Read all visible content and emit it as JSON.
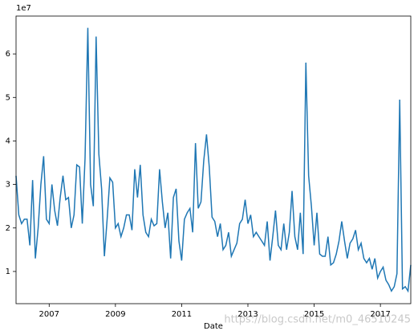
{
  "chart_data": {
    "type": "line",
    "x_label": "Date",
    "offset_label": "1e7",
    "watermark": "https://blog.csdn.net/m0_46510245",
    "x": [
      2006,
      2006.083,
      2006.167,
      2006.25,
      2006.333,
      2006.417,
      2006.5,
      2006.583,
      2006.667,
      2006.75,
      2006.833,
      2006.917,
      2007,
      2007.083,
      2007.167,
      2007.25,
      2007.333,
      2007.417,
      2007.5,
      2007.583,
      2007.667,
      2007.75,
      2007.833,
      2007.917,
      2008,
      2008.083,
      2008.167,
      2008.25,
      2008.333,
      2008.417,
      2008.5,
      2008.583,
      2008.667,
      2008.75,
      2008.833,
      2008.917,
      2009,
      2009.083,
      2009.167,
      2009.25,
      2009.333,
      2009.417,
      2009.5,
      2009.583,
      2009.667,
      2009.75,
      2009.833,
      2009.917,
      2010,
      2010.083,
      2010.167,
      2010.25,
      2010.333,
      2010.417,
      2010.5,
      2010.583,
      2010.667,
      2010.75,
      2010.833,
      2010.917,
      2011,
      2011.083,
      2011.167,
      2011.25,
      2011.333,
      2011.417,
      2011.5,
      2011.583,
      2011.667,
      2011.75,
      2011.833,
      2011.917,
      2012,
      2012.083,
      2012.167,
      2012.25,
      2012.333,
      2012.417,
      2012.5,
      2012.583,
      2012.667,
      2012.75,
      2012.833,
      2012.917,
      2013,
      2013.083,
      2013.167,
      2013.25,
      2013.333,
      2013.417,
      2013.5,
      2013.583,
      2013.667,
      2013.75,
      2013.833,
      2013.917,
      2014,
      2014.083,
      2014.167,
      2014.25,
      2014.333,
      2014.417,
      2014.5,
      2014.583,
      2014.667,
      2014.75,
      2014.833,
      2014.917,
      2015,
      2015.083,
      2015.167,
      2015.25,
      2015.333,
      2015.417,
      2015.5,
      2015.583,
      2015.667,
      2015.75,
      2015.833,
      2015.917,
      2016,
      2016.083,
      2016.167,
      2016.25,
      2016.333,
      2016.417,
      2016.5,
      2016.583,
      2016.667,
      2016.75,
      2016.833,
      2016.917,
      2017,
      2017.083,
      2017.167,
      2017.25,
      2017.333,
      2017.417,
      2017.5,
      2017.583,
      2017.667,
      2017.75,
      2017.833,
      2017.917
    ],
    "series": [
      {
        "color": "#1f77b4",
        "values": [
          3.2,
          2.3,
          2.1,
          2.2,
          2.2,
          1.6,
          3.1,
          1.3,
          2.0,
          3.0,
          3.65,
          2.2,
          2.1,
          3.0,
          2.4,
          2.05,
          2.7,
          3.2,
          2.65,
          2.7,
          2.0,
          2.3,
          3.45,
          3.4,
          2.1,
          3.6,
          6.6,
          3.0,
          2.5,
          6.4,
          3.7,
          2.9,
          1.35,
          2.2,
          3.15,
          3.05,
          2.0,
          2.1,
          1.8,
          2.0,
          2.3,
          2.3,
          1.95,
          3.35,
          2.7,
          3.45,
          2.3,
          1.9,
          1.8,
          2.2,
          2.05,
          2.1,
          3.35,
          2.6,
          2.0,
          2.35,
          1.3,
          2.7,
          2.9,
          1.7,
          1.25,
          2.2,
          2.35,
          2.45,
          1.9,
          3.95,
          2.45,
          2.6,
          3.55,
          4.15,
          3.4,
          2.25,
          2.15,
          1.8,
          2.1,
          1.5,
          1.6,
          1.9,
          1.35,
          1.5,
          1.65,
          2.1,
          2.2,
          2.65,
          2.1,
          2.3,
          1.8,
          1.9,
          1.8,
          1.7,
          1.6,
          2.15,
          1.25,
          1.8,
          2.4,
          1.6,
          1.5,
          2.1,
          1.5,
          1.9,
          2.85,
          1.8,
          1.5,
          2.35,
          1.4,
          5.8,
          3.2,
          2.5,
          1.6,
          2.35,
          1.4,
          1.35,
          1.35,
          1.8,
          1.15,
          1.2,
          1.4,
          1.7,
          2.15,
          1.7,
          1.3,
          1.65,
          1.75,
          1.95,
          1.5,
          1.65,
          1.3,
          1.2,
          1.3,
          1.05,
          1.3,
          0.85,
          1.0,
          1.1,
          0.8,
          0.7,
          0.55,
          0.65,
          0.95,
          4.95,
          0.6,
          0.65,
          0.55,
          1.15
        ]
      }
    ],
    "xlim": [
      2006,
      2017.917
    ],
    "xticks": [
      2007,
      2009,
      2011,
      2013,
      2015,
      2017
    ],
    "ylim": [
      0.26,
      6.87
    ],
    "yticks": [
      1,
      2,
      3,
      4,
      5,
      6
    ],
    "grid": false
  }
}
